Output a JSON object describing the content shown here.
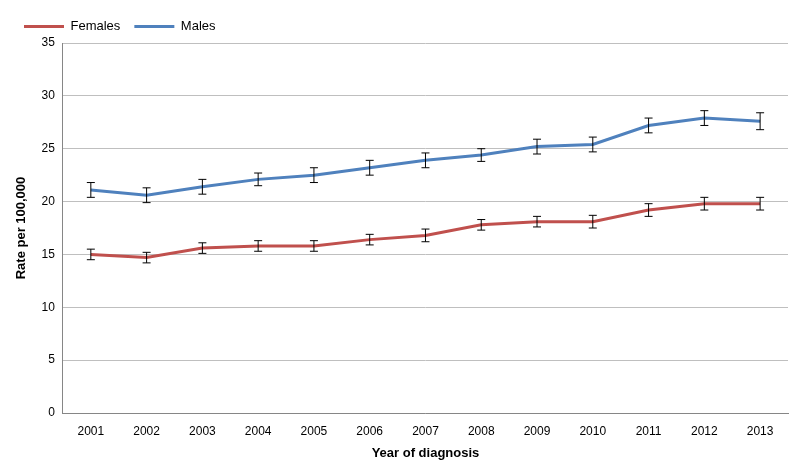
{
  "chart_data": {
    "type": "line",
    "x_label": "Year of diagnosis",
    "y_label": "Rate per 100,000",
    "categories": [
      "2001",
      "2002",
      "2003",
      "2004",
      "2005",
      "2006",
      "2007",
      "2008",
      "2009",
      "2010",
      "2011",
      "2012",
      "2013"
    ],
    "series": [
      {
        "name": "Females",
        "color": "#c0504d",
        "values": [
          15.0,
          14.7,
          15.6,
          15.8,
          15.8,
          16.4,
          16.8,
          17.8,
          18.1,
          18.1,
          19.2,
          19.8,
          19.8
        ],
        "error": [
          0.5,
          0.5,
          0.5,
          0.5,
          0.5,
          0.5,
          0.6,
          0.5,
          0.5,
          0.6,
          0.6,
          0.6,
          0.6
        ]
      },
      {
        "name": "Males",
        "color": "#4f81bd",
        "values": [
          21.1,
          20.6,
          21.4,
          22.1,
          22.5,
          23.2,
          23.9,
          24.4,
          25.2,
          25.4,
          27.2,
          27.9,
          27.6
        ],
        "error": [
          0.7,
          0.7,
          0.7,
          0.6,
          0.7,
          0.7,
          0.7,
          0.6,
          0.7,
          0.7,
          0.7,
          0.7,
          0.8
        ]
      }
    ],
    "ylim": [
      0,
      35
    ],
    "yticks": [
      0,
      5,
      10,
      15,
      20,
      25,
      30,
      35
    ],
    "grid": true,
    "legend": "upper left"
  }
}
